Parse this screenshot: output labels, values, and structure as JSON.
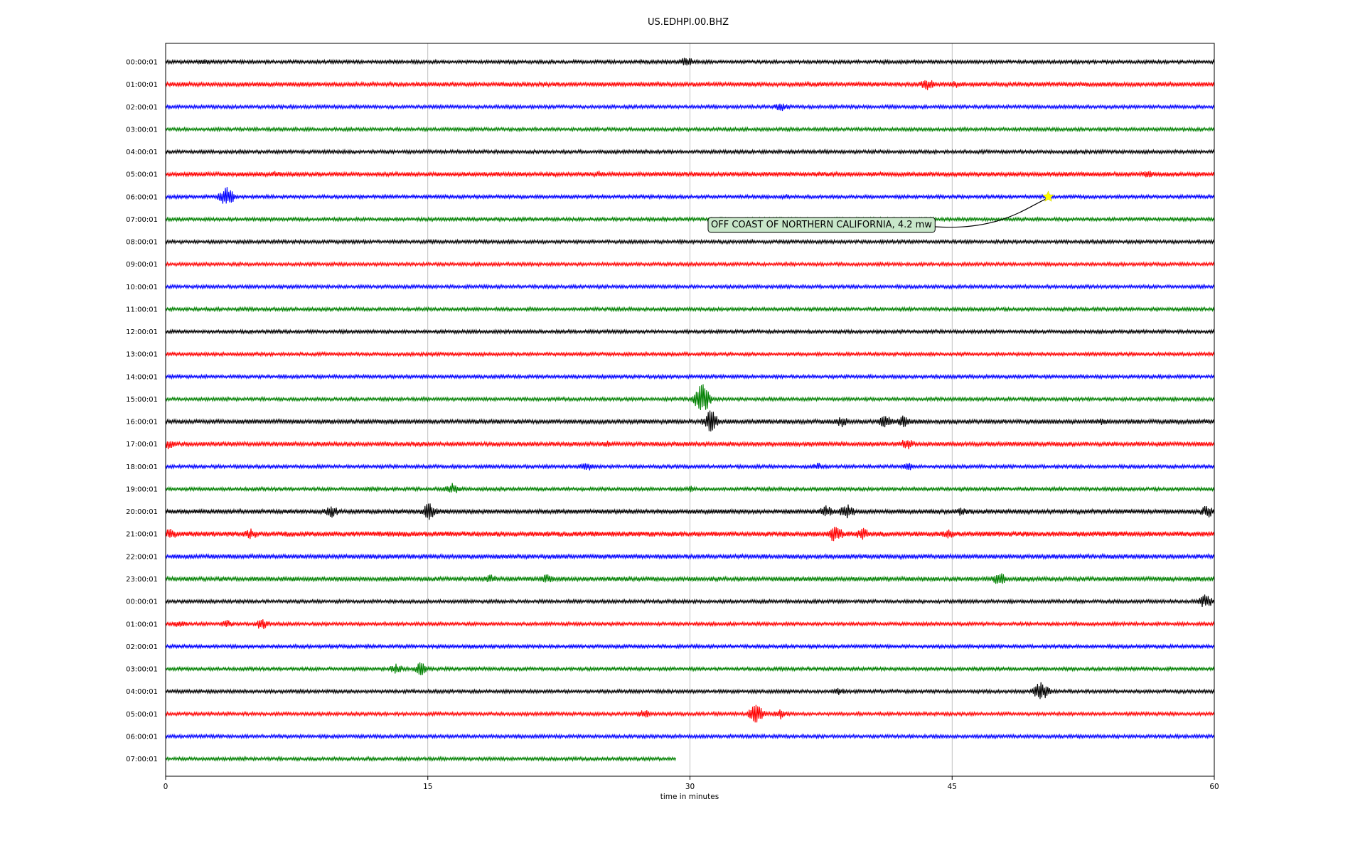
{
  "chart_data": {
    "type": "line",
    "title": "US.EDHPI.00.BHZ",
    "xlabel": "time in minutes",
    "xlim": [
      0,
      60
    ],
    "xticks": [
      "0",
      "15",
      "30",
      "45",
      "60"
    ],
    "grid_x": true,
    "row_colors": [
      "#000000",
      "#ff0000",
      "#0000ff",
      "#008000"
    ],
    "rows": [
      {
        "label": "00:00:01",
        "end": 60,
        "amp": 2,
        "events": [
          [
            2.2,
            5
          ],
          [
            29.8,
            8
          ]
        ]
      },
      {
        "label": "01:00:01",
        "end": 60,
        "amp": 2.5,
        "events": [
          [
            43.6,
            9
          ],
          [
            45.2,
            6
          ]
        ]
      },
      {
        "label": "02:00:01",
        "end": 60,
        "amp": 2,
        "events": [
          [
            35.2,
            7
          ]
        ]
      },
      {
        "label": "03:00:01",
        "end": 60,
        "amp": 2,
        "events": []
      },
      {
        "label": "04:00:01",
        "end": 60,
        "amp": 2,
        "events": []
      },
      {
        "label": "05:00:01",
        "end": 60,
        "amp": 2.5,
        "events": [
          [
            6.3,
            5
          ],
          [
            24.8,
            5
          ],
          [
            37.5,
            5
          ],
          [
            56.2,
            6
          ]
        ]
      },
      {
        "label": "06:00:01",
        "end": 60,
        "amp": 2,
        "events": [
          [
            3.5,
            16
          ],
          [
            35.5,
            4
          ]
        ]
      },
      {
        "label": "07:00:01",
        "end": 60,
        "amp": 2,
        "events": []
      },
      {
        "label": "08:00:01",
        "end": 60,
        "amp": 2,
        "events": []
      },
      {
        "label": "09:00:01",
        "end": 60,
        "amp": 2,
        "events": []
      },
      {
        "label": "10:00:01",
        "end": 60,
        "amp": 2,
        "events": []
      },
      {
        "label": "11:00:01",
        "end": 60,
        "amp": 2,
        "events": []
      },
      {
        "label": "12:00:01",
        "end": 60,
        "amp": 2,
        "events": []
      },
      {
        "label": "13:00:01",
        "end": 60,
        "amp": 2,
        "events": []
      },
      {
        "label": "14:00:01",
        "end": 60,
        "amp": 2,
        "events": []
      },
      {
        "label": "15:00:01",
        "end": 60,
        "amp": 2,
        "events": [
          [
            30.7,
            26
          ]
        ]
      },
      {
        "label": "16:00:01",
        "end": 60,
        "amp": 2.5,
        "events": [
          [
            31.2,
            18
          ],
          [
            38.7,
            8
          ],
          [
            41.2,
            10
          ],
          [
            42.2,
            9
          ],
          [
            53.6,
            6
          ]
        ]
      },
      {
        "label": "17:00:01",
        "end": 60,
        "amp": 2.5,
        "events": [
          [
            0.2,
            8
          ],
          [
            25.3,
            5
          ],
          [
            42.4,
            9
          ]
        ]
      },
      {
        "label": "18:00:01",
        "end": 60,
        "amp": 2,
        "events": [
          [
            18.6,
            4
          ],
          [
            24.1,
            7
          ],
          [
            37.3,
            6
          ],
          [
            42.5,
            6
          ]
        ]
      },
      {
        "label": "19:00:01",
        "end": 60,
        "amp": 2,
        "events": [
          [
            11.8,
            4
          ],
          [
            16.4,
            9
          ],
          [
            30,
            5
          ]
        ]
      },
      {
        "label": "20:00:01",
        "end": 60,
        "amp": 2.5,
        "events": [
          [
            9.5,
            10
          ],
          [
            15.1,
            14
          ],
          [
            37.8,
            10
          ],
          [
            39,
            12
          ],
          [
            45.5,
            7
          ],
          [
            59.6,
            10
          ]
        ]
      },
      {
        "label": "21:00:01",
        "end": 60,
        "amp": 3,
        "events": [
          [
            0.3,
            9
          ],
          [
            4.9,
            8
          ],
          [
            38.3,
            14
          ],
          [
            39.9,
            10
          ],
          [
            44.8,
            8
          ]
        ]
      },
      {
        "label": "22:00:01",
        "end": 60,
        "amp": 2.5,
        "events": [
          [
            54.1,
            4
          ]
        ]
      },
      {
        "label": "23:00:01",
        "end": 60,
        "amp": 2.5,
        "events": [
          [
            18.6,
            7
          ],
          [
            21.8,
            8
          ],
          [
            47.7,
            10
          ]
        ]
      },
      {
        "label": "00:00:01",
        "end": 60,
        "amp": 2,
        "events": [
          [
            59.5,
            11
          ]
        ]
      },
      {
        "label": "01:00:01",
        "end": 60,
        "amp": 2,
        "events": [
          [
            0.8,
            6
          ],
          [
            3.5,
            6
          ],
          [
            5.5,
            9
          ]
        ]
      },
      {
        "label": "02:00:01",
        "end": 60,
        "amp": 2,
        "events": [
          [
            17.5,
            3
          ]
        ]
      },
      {
        "label": "03:00:01",
        "end": 60,
        "amp": 2,
        "events": [
          [
            13.2,
            8
          ],
          [
            14.6,
            10
          ]
        ]
      },
      {
        "label": "04:00:01",
        "end": 60,
        "amp": 2,
        "events": [
          [
            38.5,
            6
          ],
          [
            50.1,
            16
          ]
        ]
      },
      {
        "label": "05:00:01",
        "end": 60,
        "amp": 2,
        "events": [
          [
            27.4,
            7
          ],
          [
            33.8,
            16
          ],
          [
            35.2,
            8
          ]
        ]
      },
      {
        "label": "06:00:01",
        "end": 60,
        "amp": 2,
        "events": [
          [
            52.3,
            3
          ]
        ]
      },
      {
        "label": "07:00:01",
        "end": 29.2,
        "amp": 2,
        "events": []
      }
    ],
    "annotation": {
      "text": "OFF COAST OF NORTHERN CALIFORNIA, 4.2 mw",
      "row_index": 6,
      "x_minutes": 50.5,
      "marker": "star",
      "marker_color": "#ffff00",
      "box_color": "#c8e6c9"
    }
  }
}
